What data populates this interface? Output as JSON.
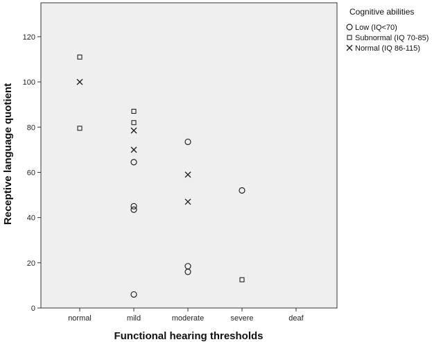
{
  "chart_data": {
    "type": "scatter",
    "title": "",
    "xlabel": "Functional hearing thresholds",
    "ylabel": "Receptive language quotient",
    "categories": [
      "normal",
      "mild",
      "moderate",
      "severe",
      "deaf"
    ],
    "ylim": [
      0,
      135
    ],
    "yticks": [
      0,
      20,
      40,
      60,
      80,
      100,
      120
    ],
    "grid": false,
    "legend": {
      "title": "Cognitive abilities",
      "position": "top-right, outside plot"
    },
    "series": [
      {
        "name": "Low (IQ<70)",
        "marker": "circle",
        "points": [
          {
            "x": "mild",
            "y": 64.5
          },
          {
            "x": "mild",
            "y": 45
          },
          {
            "x": "mild",
            "y": 43.5
          },
          {
            "x": "mild",
            "y": 6
          },
          {
            "x": "moderate",
            "y": 73.5
          },
          {
            "x": "moderate",
            "y": 18.5
          },
          {
            "x": "moderate",
            "y": 16
          },
          {
            "x": "severe",
            "y": 52
          }
        ]
      },
      {
        "name": "Subnormal (IQ 70-85)",
        "marker": "square",
        "points": [
          {
            "x": "normal",
            "y": 111
          },
          {
            "x": "normal",
            "y": 79.5
          },
          {
            "x": "mild",
            "y": 87
          },
          {
            "x": "mild",
            "y": 82
          },
          {
            "x": "severe",
            "y": 12.5
          }
        ]
      },
      {
        "name": "Normal (IQ 86-115)",
        "marker": "x",
        "points": [
          {
            "x": "normal",
            "y": 100
          },
          {
            "x": "mild",
            "y": 78.5
          },
          {
            "x": "mild",
            "y": 70
          },
          {
            "x": "moderate",
            "y": 59
          },
          {
            "x": "moderate",
            "y": 47
          }
        ]
      }
    ],
    "colors": {
      "plot_background": "#efefef",
      "marker": "#222222",
      "axis": "#333333"
    }
  }
}
